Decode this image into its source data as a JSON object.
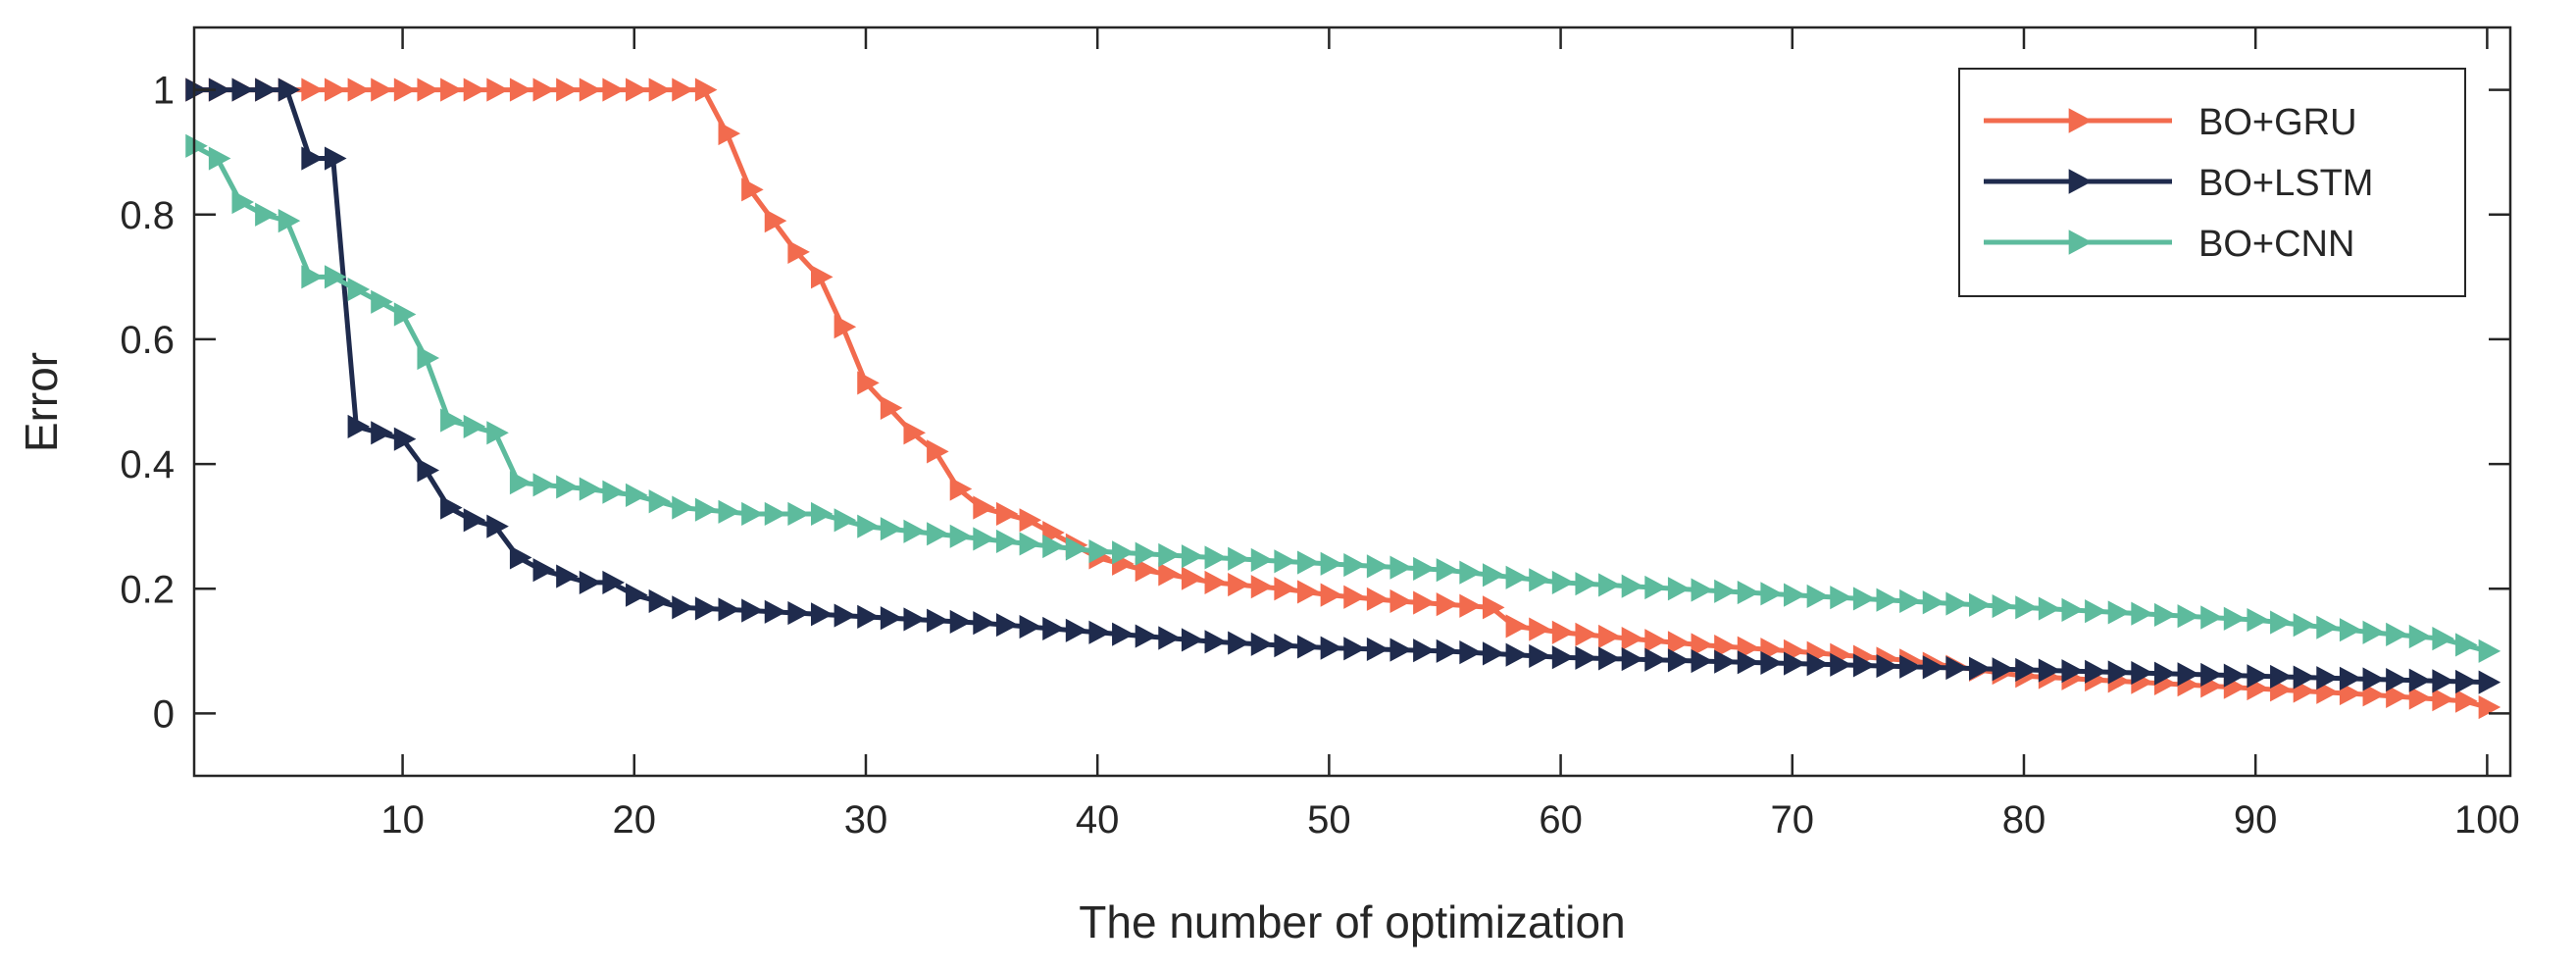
{
  "chart_data": {
    "type": "line",
    "title": "",
    "xlabel": "The number of optimization",
    "ylabel": "Error",
    "xlim": [
      1,
      101
    ],
    "ylim": [
      -0.1,
      1.1
    ],
    "xticks": [
      10,
      20,
      30,
      40,
      50,
      60,
      70,
      80,
      90,
      100
    ],
    "yticks": [
      0,
      0.2,
      0.4,
      0.6,
      0.8,
      1
    ],
    "ytick_labels": [
      "0",
      "0.2",
      "0.4",
      "0.6",
      "0.8",
      "1"
    ],
    "grid": false,
    "legend_position": "top-right",
    "marker": "right-pointing triangle",
    "series": [
      {
        "name": "BO+GRU",
        "color": "#F26B4E",
        "points": [
          [
            1,
            1
          ],
          [
            23,
            1
          ],
          [
            24,
            0.93
          ],
          [
            25,
            0.84
          ],
          [
            26,
            0.79
          ],
          [
            27,
            0.74
          ],
          [
            28,
            0.7
          ],
          [
            29,
            0.62
          ],
          [
            30,
            0.53
          ],
          [
            31,
            0.49
          ],
          [
            32,
            0.45
          ],
          [
            33,
            0.42
          ],
          [
            34,
            0.36
          ],
          [
            35,
            0.33
          ],
          [
            36,
            0.32
          ],
          [
            37,
            0.31
          ],
          [
            38,
            0.29
          ],
          [
            39,
            0.27
          ],
          [
            40,
            0.25
          ],
          [
            42,
            0.23
          ],
          [
            45,
            0.21
          ],
          [
            48,
            0.2
          ],
          [
            50,
            0.19
          ],
          [
            53,
            0.18
          ],
          [
            55,
            0.175
          ],
          [
            57,
            0.17
          ],
          [
            58,
            0.14
          ],
          [
            60,
            0.13
          ],
          [
            63,
            0.12
          ],
          [
            66,
            0.11
          ],
          [
            70,
            0.1
          ],
          [
            75,
            0.085
          ],
          [
            80,
            0.06
          ],
          [
            85,
            0.05
          ],
          [
            90,
            0.04
          ],
          [
            95,
            0.03
          ],
          [
            99,
            0.02
          ],
          [
            100,
            0.01
          ]
        ]
      },
      {
        "name": "BO+LSTM",
        "color": "#1F2B4D",
        "points": [
          [
            1,
            1
          ],
          [
            5,
            1
          ],
          [
            6,
            0.89
          ],
          [
            7,
            0.89
          ],
          [
            8,
            0.46
          ],
          [
            9,
            0.45
          ],
          [
            10,
            0.44
          ],
          [
            11,
            0.39
          ],
          [
            12,
            0.33
          ],
          [
            13,
            0.31
          ],
          [
            14,
            0.3
          ],
          [
            15,
            0.25
          ],
          [
            16,
            0.23
          ],
          [
            17,
            0.22
          ],
          [
            18,
            0.21
          ],
          [
            19,
            0.21
          ],
          [
            20,
            0.19
          ],
          [
            21,
            0.18
          ],
          [
            22,
            0.17
          ],
          [
            25,
            0.165
          ],
          [
            30,
            0.155
          ],
          [
            35,
            0.145
          ],
          [
            40,
            0.13
          ],
          [
            45,
            0.115
          ],
          [
            50,
            0.105
          ],
          [
            55,
            0.1
          ],
          [
            60,
            0.09
          ],
          [
            65,
            0.085
          ],
          [
            70,
            0.08
          ],
          [
            75,
            0.075
          ],
          [
            80,
            0.07
          ],
          [
            85,
            0.065
          ],
          [
            90,
            0.06
          ],
          [
            95,
            0.055
          ],
          [
            100,
            0.05
          ]
        ]
      },
      {
        "name": "BO+CNN",
        "color": "#5DBB9D",
        "points": [
          [
            1,
            0.91
          ],
          [
            2,
            0.89
          ],
          [
            3,
            0.82
          ],
          [
            4,
            0.8
          ],
          [
            5,
            0.79
          ],
          [
            6,
            0.7
          ],
          [
            7,
            0.7
          ],
          [
            8,
            0.68
          ],
          [
            9,
            0.66
          ],
          [
            10,
            0.64
          ],
          [
            11,
            0.57
          ],
          [
            12,
            0.47
          ],
          [
            13,
            0.46
          ],
          [
            14,
            0.45
          ],
          [
            15,
            0.37
          ],
          [
            18,
            0.36
          ],
          [
            20,
            0.35
          ],
          [
            22,
            0.33
          ],
          [
            25,
            0.32
          ],
          [
            28,
            0.32
          ],
          [
            30,
            0.3
          ],
          [
            35,
            0.28
          ],
          [
            40,
            0.26
          ],
          [
            45,
            0.25
          ],
          [
            50,
            0.24
          ],
          [
            55,
            0.23
          ],
          [
            60,
            0.21
          ],
          [
            65,
            0.2
          ],
          [
            70,
            0.19
          ],
          [
            75,
            0.18
          ],
          [
            80,
            0.17
          ],
          [
            85,
            0.16
          ],
          [
            90,
            0.15
          ],
          [
            95,
            0.13
          ],
          [
            98,
            0.12
          ],
          [
            100,
            0.1
          ]
        ]
      }
    ]
  }
}
